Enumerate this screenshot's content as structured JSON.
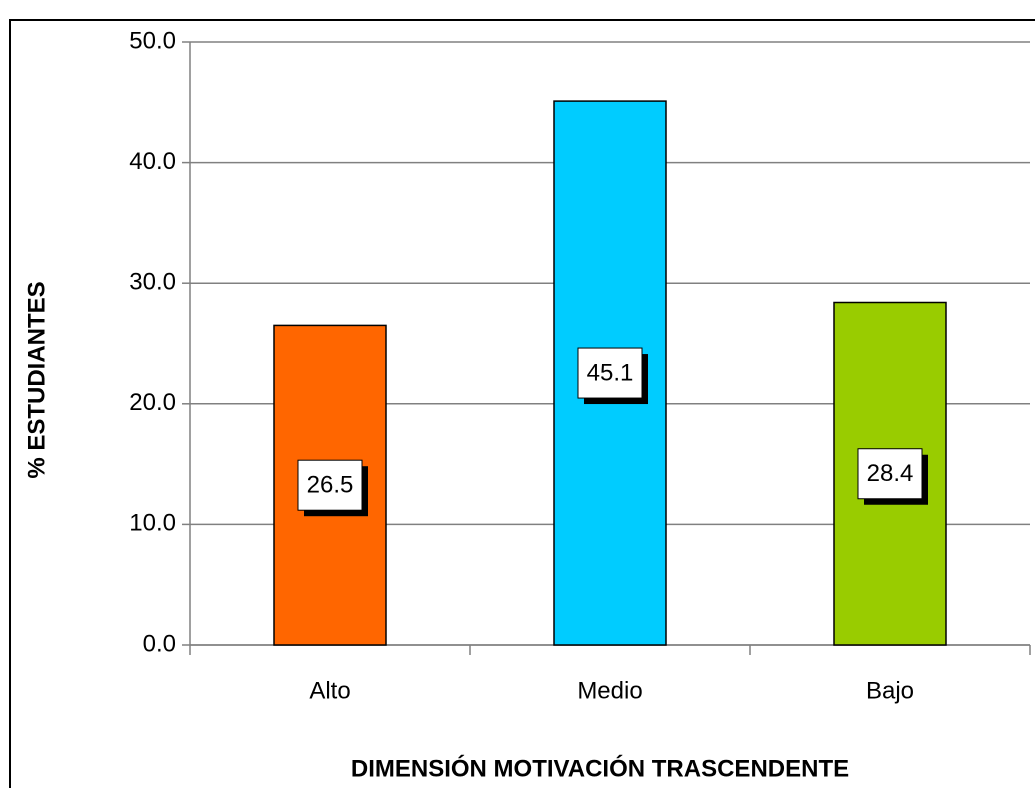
{
  "chart_data": {
    "type": "bar",
    "categories": [
      "Alto",
      "Medio",
      "Bajo"
    ],
    "values": [
      26.5,
      45.1,
      28.4
    ],
    "colors": [
      "#ff6600",
      "#00ccff",
      "#99cc00"
    ],
    "ylabel": "% ESTUDIANTES",
    "xlabel": "DIMENSIÓN MOTIVACIÓN TRASCENDENTE",
    "ylim": [
      0,
      50
    ],
    "yticks": [
      {
        "value": 0,
        "label": "0.0"
      },
      {
        "value": 10,
        "label": "10.0"
      },
      {
        "value": 20,
        "label": "20.0"
      },
      {
        "value": 30,
        "label": "30.0"
      },
      {
        "value": 40,
        "label": "40.0"
      },
      {
        "value": 50,
        "label": "50.0"
      }
    ],
    "grid": true
  }
}
